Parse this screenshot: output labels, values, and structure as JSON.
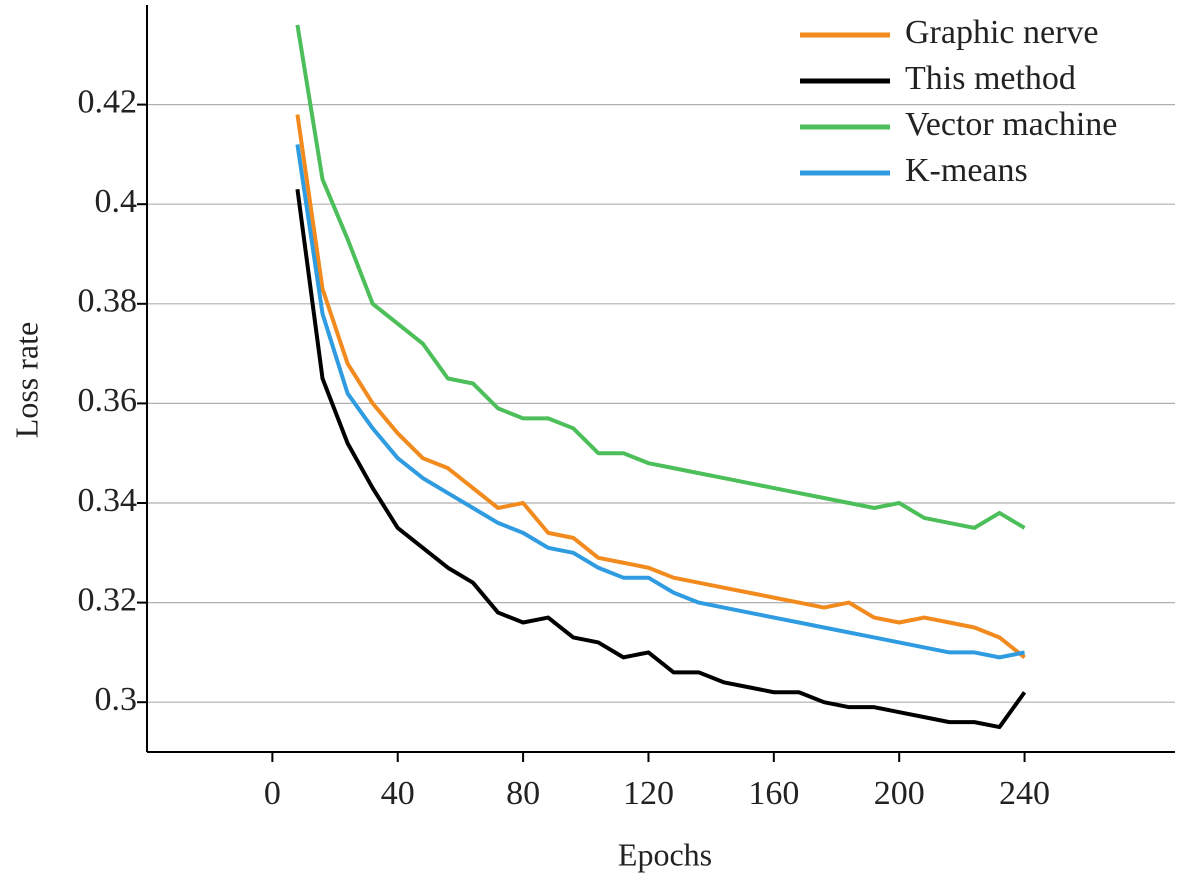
{
  "chart_data": {
    "type": "line",
    "x_label": "Epochs",
    "y_label": "Loss rate",
    "x": [
      8,
      16,
      24,
      32,
      40,
      48,
      56,
      64,
      72,
      80,
      88,
      96,
      104,
      112,
      120,
      128,
      136,
      144,
      152,
      160,
      168,
      176,
      184,
      192,
      200,
      208,
      216,
      224,
      232,
      240
    ],
    "series": [
      {
        "name": "Graphic nerve",
        "color": "#f28a1e",
        "values": [
          0.418,
          0.383,
          0.368,
          0.36,
          0.354,
          0.349,
          0.347,
          0.343,
          0.339,
          0.34,
          0.334,
          0.333,
          0.329,
          0.328,
          0.327,
          0.325,
          0.324,
          0.323,
          0.322,
          0.321,
          0.32,
          0.319,
          0.32,
          0.317,
          0.316,
          0.317,
          0.316,
          0.315,
          0.313,
          0.309
        ]
      },
      {
        "name": "This method",
        "color": "#000000",
        "values": [
          0.403,
          0.365,
          0.352,
          0.343,
          0.335,
          0.331,
          0.327,
          0.324,
          0.318,
          0.316,
          0.317,
          0.313,
          0.312,
          0.309,
          0.31,
          0.306,
          0.306,
          0.304,
          0.303,
          0.302,
          0.302,
          0.3,
          0.299,
          0.299,
          0.298,
          0.297,
          0.296,
          0.296,
          0.295,
          0.302
        ]
      },
      {
        "name": "Vector machine",
        "color": "#4cbf5a",
        "values": [
          0.436,
          0.405,
          0.393,
          0.38,
          0.376,
          0.372,
          0.365,
          0.364,
          0.359,
          0.357,
          0.357,
          0.355,
          0.35,
          0.35,
          0.348,
          0.347,
          0.346,
          0.345,
          0.344,
          0.343,
          0.342,
          0.341,
          0.34,
          0.339,
          0.34,
          0.337,
          0.336,
          0.335,
          0.338,
          0.335
        ]
      },
      {
        "name": "K-means",
        "color": "#2f9be0",
        "values": [
          0.412,
          0.378,
          0.362,
          0.355,
          0.349,
          0.345,
          0.342,
          0.339,
          0.336,
          0.334,
          0.331,
          0.33,
          0.327,
          0.325,
          0.325,
          0.322,
          0.32,
          0.319,
          0.318,
          0.317,
          0.316,
          0.315,
          0.314,
          0.313,
          0.312,
          0.311,
          0.31,
          0.31,
          0.309,
          0.31
        ]
      }
    ],
    "xlim": [
      -40,
      288
    ],
    "ylim": [
      0.29,
      0.44
    ],
    "xticks": [
      0,
      40,
      80,
      120,
      160,
      200,
      240
    ],
    "yticks": [
      0.3,
      0.32,
      0.34,
      0.36,
      0.38,
      0.4,
      0.42
    ],
    "grid": true,
    "legend": "upper right"
  }
}
